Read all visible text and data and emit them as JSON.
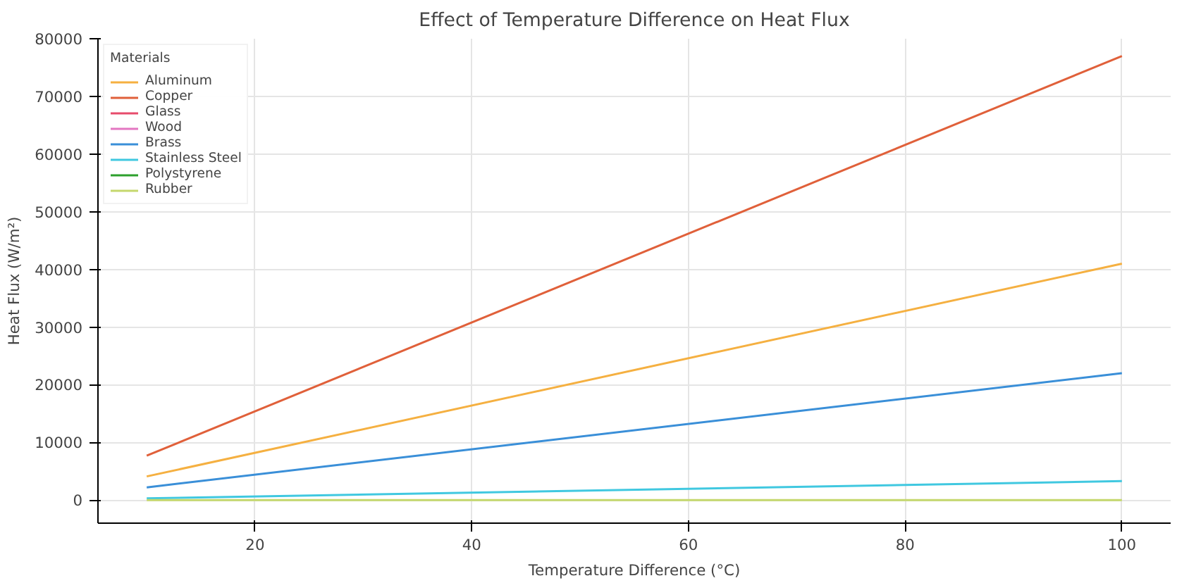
{
  "chart_data": {
    "type": "line",
    "title": "Effect of Temperature Difference on Heat Flux",
    "xlabel": "Temperature Difference (°C)",
    "ylabel": "Heat Flux (W/m²)",
    "legend_title": "Materials",
    "x": [
      10,
      100
    ],
    "series": [
      {
        "name": "Aluminum",
        "color": "#f5b041",
        "values": [
          4100,
          41000
        ]
      },
      {
        "name": "Copper",
        "color": "#e0603a",
        "values": [
          7700,
          77000
        ]
      },
      {
        "name": "Glass",
        "color": "#e74c6c",
        "values": [
          null,
          null
        ]
      },
      {
        "name": "Wood",
        "color": "#e377c2",
        "values": [
          null,
          null
        ]
      },
      {
        "name": "Brass",
        "color": "#3a8fd8",
        "values": [
          2200,
          22000
        ]
      },
      {
        "name": "Stainless Steel",
        "color": "#40c8e0",
        "values": [
          300,
          3300
        ]
      },
      {
        "name": "Polystyrene",
        "color": "#2ca02c",
        "values": [
          null,
          null
        ]
      },
      {
        "name": "Rubber",
        "color": "#c5d86d",
        "values": [
          0,
          0
        ]
      }
    ],
    "xlim": [
      5.5,
      104.5
    ],
    "ylim": [
      -4000,
      80000
    ],
    "xticks": [
      20,
      40,
      60,
      80,
      100
    ],
    "yticks": [
      0,
      10000,
      20000,
      30000,
      40000,
      50000,
      60000,
      70000,
      80000
    ],
    "grid": true,
    "legend": "top left",
    "marker": "none",
    "line_style": "solid"
  }
}
